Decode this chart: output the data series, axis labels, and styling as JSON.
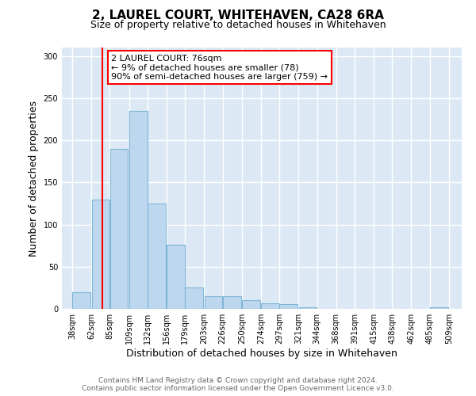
{
  "title": "2, LAUREL COURT, WHITEHAVEN, CA28 6RA",
  "subtitle": "Size of property relative to detached houses in Whitehaven",
  "xlabel": "Distribution of detached houses by size in Whitehaven",
  "ylabel": "Number of detached properties",
  "bar_left_edges": [
    38,
    62,
    85,
    109,
    132,
    156,
    179,
    203,
    226,
    250,
    274,
    297,
    321,
    344,
    368,
    391,
    415,
    438,
    462,
    485
  ],
  "bar_widths": [
    23,
    23,
    23,
    23,
    23,
    23,
    23,
    23,
    23,
    23,
    23,
    23,
    23,
    23,
    23,
    23,
    23,
    23,
    23,
    23
  ],
  "bar_heights": [
    20,
    130,
    190,
    235,
    125,
    76,
    25,
    15,
    15,
    10,
    7,
    6,
    2,
    0,
    0,
    0,
    0,
    0,
    0,
    2
  ],
  "bar_color": "#bdd7ee",
  "bar_edge_color": "#7eb5d6",
  "x_tick_labels": [
    "38sqm",
    "62sqm",
    "85sqm",
    "109sqm",
    "132sqm",
    "156sqm",
    "179sqm",
    "203sqm",
    "226sqm",
    "250sqm",
    "274sqm",
    "297sqm",
    "321sqm",
    "344sqm",
    "368sqm",
    "391sqm",
    "415sqm",
    "438sqm",
    "462sqm",
    "485sqm",
    "509sqm"
  ],
  "x_tick_positions": [
    38,
    62,
    85,
    109,
    132,
    156,
    179,
    203,
    226,
    250,
    274,
    297,
    321,
    344,
    368,
    391,
    415,
    438,
    462,
    485,
    509
  ],
  "ylim": [
    0,
    310
  ],
  "xlim": [
    25,
    525
  ],
  "yticks": [
    0,
    50,
    100,
    150,
    200,
    250,
    300
  ],
  "red_line_x": 76,
  "annotation_title": "2 LAUREL COURT: 76sqm",
  "annotation_line1": "← 9% of detached houses are smaller (78)",
  "annotation_line2": "90% of semi-detached houses are larger (759) →",
  "footer_line1": "Contains HM Land Registry data © Crown copyright and database right 2024.",
  "footer_line2": "Contains public sector information licensed under the Open Government Licence v3.0.",
  "fig_background_color": "#ffffff",
  "plot_background_color": "#dce9f5",
  "grid_color": "#ffffff",
  "title_fontsize": 11,
  "subtitle_fontsize": 9,
  "axis_label_fontsize": 9,
  "tick_fontsize": 7,
  "footer_fontsize": 6.5,
  "annotation_fontsize": 8
}
